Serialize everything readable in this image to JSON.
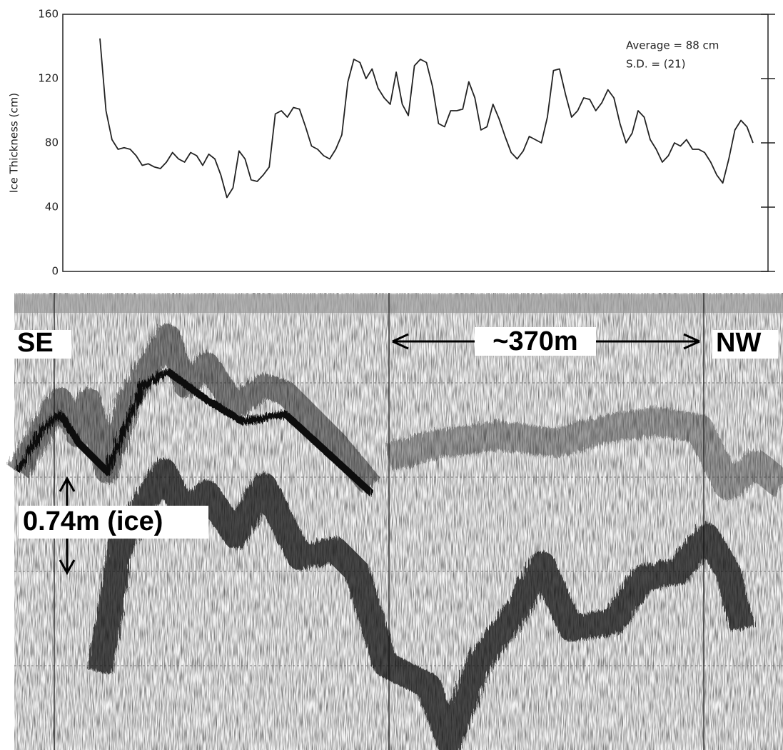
{
  "chart_data": {
    "type": "line",
    "ylabel": "Ice Thickness (cm)",
    "annotations": [
      "Average = 88 cm",
      "S.D. = (21)"
    ],
    "color": "#222",
    "values": [
      145,
      100,
      82,
      76,
      77,
      76,
      72,
      66,
      67,
      65,
      64,
      68,
      74,
      70,
      68,
      74,
      72,
      66,
      73,
      70,
      60,
      46,
      52,
      75,
      70,
      57,
      56,
      60,
      65,
      98,
      100,
      96,
      102,
      101,
      90,
      78,
      76,
      72,
      70,
      76,
      85,
      118,
      132,
      130,
      120,
      126,
      114,
      108,
      104,
      124,
      104,
      97,
      128,
      132,
      130,
      115,
      92,
      90,
      100,
      100,
      101,
      118,
      108,
      88,
      90,
      104,
      95,
      84,
      74,
      70,
      75,
      84,
      82,
      80,
      96,
      125,
      126,
      110,
      96,
      100,
      108,
      107,
      100,
      105,
      113,
      108,
      92,
      80,
      86,
      100,
      96,
      82,
      76,
      68,
      72,
      80,
      78,
      82,
      76,
      76,
      74,
      68,
      60,
      55,
      70,
      88,
      94,
      90,
      80
    ],
    "ylim": [
      0,
      160
    ],
    "yticks": [
      0,
      40,
      80,
      120,
      160
    ]
  },
  "radar_image": {
    "labels": [
      "SE",
      "~370m",
      "NW",
      "0.74m (ice)"
    ]
  }
}
